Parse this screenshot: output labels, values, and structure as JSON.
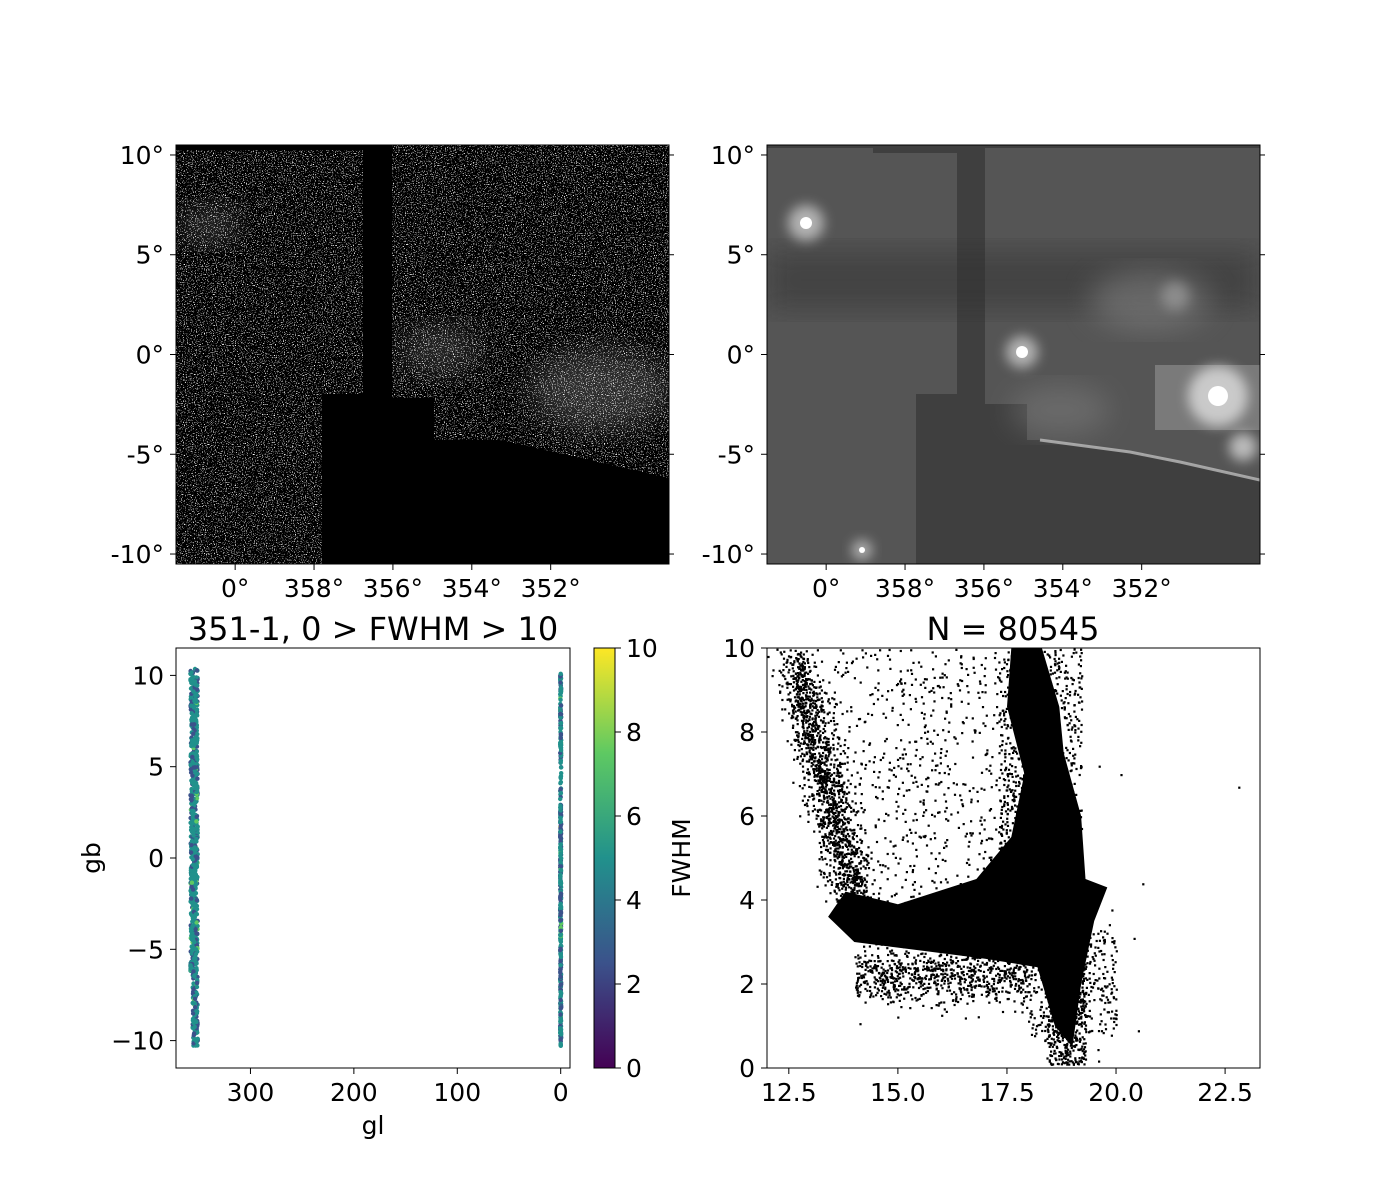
{
  "figure": {
    "colors": {
      "background": "#ffffff",
      "axis": "#000000",
      "points": "#000000"
    }
  },
  "chart_data": [
    {
      "type": "heatmap",
      "panel": "top-left",
      "title": "",
      "xlabel": "",
      "ylabel": "",
      "xlim": [
        1.5,
        349.0
      ],
      "ylim": [
        -10.5,
        10.5
      ],
      "x_tick_labels": [
        "0°",
        "358°",
        "356°",
        "354°",
        "352°"
      ],
      "x_tick_values": [
        0,
        358,
        356,
        354,
        352
      ],
      "y_tick_labels": [
        "10°",
        "5°",
        "0°",
        "-5°",
        "-10°"
      ],
      "y_tick_values": [
        10,
        5,
        0,
        -5,
        -10
      ],
      "colormap": "gray"
    },
    {
      "type": "heatmap",
      "panel": "top-right",
      "title": "",
      "xlabel": "",
      "ylabel": "",
      "xlim": [
        1.5,
        349.0
      ],
      "ylim": [
        -10.5,
        10.5
      ],
      "x_tick_labels": [
        "0°",
        "358°",
        "356°",
        "354°",
        "352°"
      ],
      "x_tick_values": [
        0,
        358,
        356,
        354,
        352
      ],
      "y_tick_labels": [
        "10°",
        "5°",
        "0°",
        "-5°",
        "-10°"
      ],
      "y_tick_values": [
        10,
        5,
        0,
        -5,
        -10
      ],
      "colormap": "gray"
    },
    {
      "type": "scatter",
      "panel": "bottom-left",
      "title": "351-1, 0 > FWHM > 10",
      "xlabel": "gl",
      "ylabel": "gb",
      "xlim": [
        372,
        -9
      ],
      "ylim": [
        -11.5,
        11.5
      ],
      "x_ticks": [
        "300",
        "200",
        "100",
        "0"
      ],
      "x_tick_values": [
        300,
        200,
        100,
        0
      ],
      "y_ticks": [
        "10",
        "5",
        "0",
        "−5",
        "−10"
      ],
      "y_tick_values": [
        10,
        5,
        0,
        -5,
        -10
      ],
      "series": [
        {
          "x_range": [
            351,
            358
          ],
          "y_range": [
            -10.3,
            10.4
          ],
          "median_fwhm": 4.2
        },
        {
          "x_range": [
            -0.5,
            0.5
          ],
          "y_range": [
            -10.3,
            10.1
          ],
          "median_fwhm": 4.0
        }
      ],
      "colorbar": {
        "label": "FWHM",
        "colormap": "viridis",
        "range": [
          0,
          10
        ],
        "tick_labels": [
          "10",
          "8",
          "6",
          "4",
          "2",
          "0"
        ],
        "tick_values": [
          10,
          8,
          6,
          4,
          2,
          0
        ],
        "stops": [
          "#440154",
          "#3b528b",
          "#21918c",
          "#5ec962",
          "#fde725"
        ]
      }
    },
    {
      "type": "scatter",
      "panel": "bottom-right",
      "title": "N = 80545",
      "xlabel": "",
      "ylabel": "",
      "xlim": [
        12.0,
        23.3
      ],
      "ylim": [
        0,
        10
      ],
      "x_ticks": [
        "12.5",
        "15.0",
        "17.5",
        "20.0",
        "22.5"
      ],
      "x_tick_values": [
        12.5,
        15.0,
        17.5,
        20.0,
        22.5
      ],
      "y_ticks": [
        "10",
        "8",
        "6",
        "4",
        "2",
        "0"
      ],
      "y_tick_values": [
        10,
        8,
        6,
        4,
        2,
        0
      ],
      "n_points": 80545
    }
  ]
}
